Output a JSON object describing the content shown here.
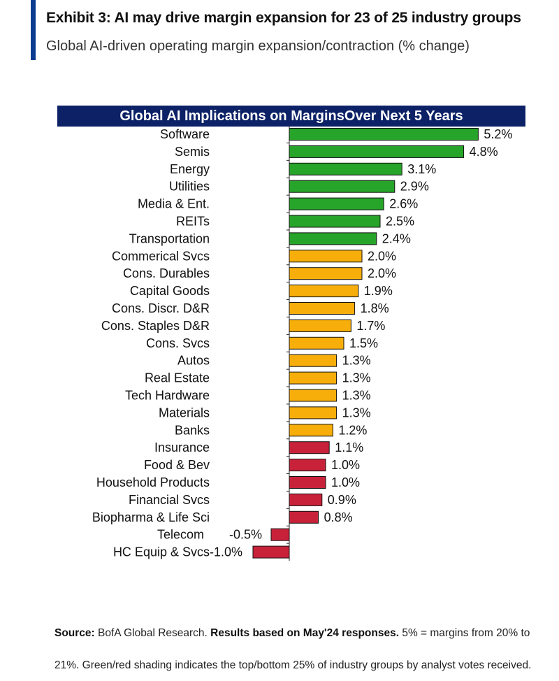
{
  "title": "Exhibit 3: AI may drive margin expansion for 23 of 25 industry groups",
  "subtitle": "Global AI-driven operating margin expansion/contraction (% change)",
  "colors": {
    "accent": "#0a3d91",
    "header_bg": "#0c2166",
    "green": "#27a42a",
    "orange": "#f7ae0b",
    "red": "#c8223a"
  },
  "chart_data": {
    "type": "bar",
    "orientation": "horizontal",
    "title": "Global AI Implications on MarginsOver Next 5 Years",
    "categories": [
      "Software",
      "Semis",
      "Energy",
      "Utilities",
      "Media & Ent.",
      "REITs",
      "Transportation",
      "Commerical Svcs",
      "Cons. Durables",
      "Capital Goods",
      "Cons. Discr. D&R",
      "Cons. Staples D&R",
      "Cons. Svcs",
      "Autos",
      "Real Estate",
      "Tech Hardware",
      "Materials",
      "Banks",
      "Insurance",
      "Food & Bev",
      "Household Products",
      "Financial Svcs",
      "Biopharma & Life Sci",
      "Telecom",
      "HC Equip & Svcs"
    ],
    "values": [
      5.2,
      4.8,
      3.1,
      2.9,
      2.6,
      2.5,
      2.4,
      2.0,
      2.0,
      1.9,
      1.8,
      1.7,
      1.5,
      1.3,
      1.3,
      1.3,
      1.3,
      1.2,
      1.1,
      1.0,
      1.0,
      0.9,
      0.8,
      -0.5,
      -1.0
    ],
    "value_labels": [
      "5.2%",
      "4.8%",
      "3.1%",
      "2.9%",
      "2.6%",
      "2.5%",
      "2.4%",
      "2.0%",
      "2.0%",
      "1.9%",
      "1.8%",
      "1.7%",
      "1.5%",
      "1.3%",
      "1.3%",
      "1.3%",
      "1.3%",
      "1.2%",
      "1.1%",
      "1.0%",
      "1.0%",
      "0.9%",
      "0.8%",
      "-0.5%",
      "-1.0%"
    ],
    "bar_colors": [
      "green",
      "green",
      "green",
      "green",
      "green",
      "green",
      "green",
      "orange",
      "orange",
      "orange",
      "orange",
      "orange",
      "orange",
      "orange",
      "orange",
      "orange",
      "orange",
      "orange",
      "red",
      "red",
      "red",
      "red",
      "red",
      "red",
      "red"
    ],
    "xlim": [
      -1.0,
      5.2
    ],
    "xlabel": "",
    "ylabel": "",
    "grid": false
  },
  "footnote": {
    "source_label": "Source:",
    "source_text": " BofA Global Research. ",
    "bold_text": "Results based on May'24 responses.",
    "rest_line1": " 5% = margins from 20% to",
    "line2": "21%. Green/red shading indicates the top/bottom 25% of industry groups by analyst votes received."
  }
}
